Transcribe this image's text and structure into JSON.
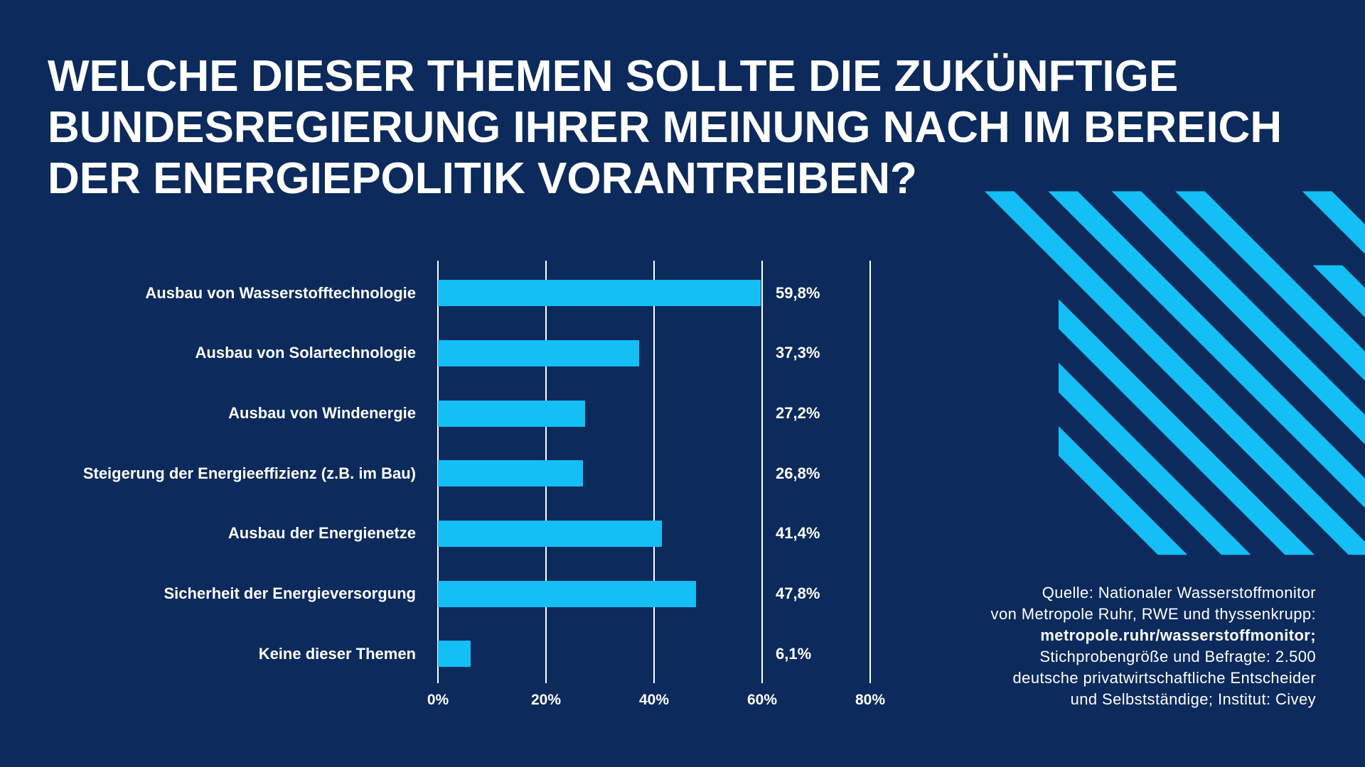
{
  "colors": {
    "background": "#0c2a5b",
    "bar": "#13bff5",
    "text": "#ffffff",
    "gridline": "#ffffff",
    "decor_stripes": "#13bff5"
  },
  "chart_data": {
    "type": "bar",
    "orientation": "horizontal",
    "title": "WELCHE DIESER THEMEN SOLLTE DIE ZUKÜNFTIGE BUNDESREGIERUNG IHRER MEINUNG NACH IM BEREICH DER ENERGIEPOLITIK VORANTREIBEN?",
    "categories": [
      "Ausbau von Wasserstofftechnologie",
      "Ausbau von Solartechnologie",
      "Ausbau von Windenergie",
      "Steigerung der Energieeffizienz (z.B. im Bau)",
      "Ausbau der Energienetze",
      "Sicherheit der Energieversorgung",
      "Keine dieser Themen"
    ],
    "values": [
      59.8,
      37.3,
      27.2,
      26.8,
      41.4,
      47.8,
      6.1
    ],
    "value_labels": [
      "59,8%",
      "37,3%",
      "27,2%",
      "26,8%",
      "41,4%",
      "47,8%",
      "6,1%"
    ],
    "xlim": [
      0,
      80
    ],
    "x_ticks": [
      0,
      20,
      40,
      60,
      80
    ],
    "x_tick_labels": [
      "0%",
      "20%",
      "40%",
      "60%",
      "80%"
    ],
    "xlabel": "",
    "ylabel": "",
    "grid": true
  },
  "source": {
    "lines": [
      "Quelle: Nationaler Wasserstoffmonitor",
      "von Metropole Ruhr, RWE und thyssenkrupp:",
      "metropole.ruhr/wasserstoffmonitor;",
      "Stichprobengröße und Befragte: 2.500",
      "deutsche privatwirtschaftliche Entscheider",
      "und Selbstständige; Institut: Civey"
    ]
  }
}
